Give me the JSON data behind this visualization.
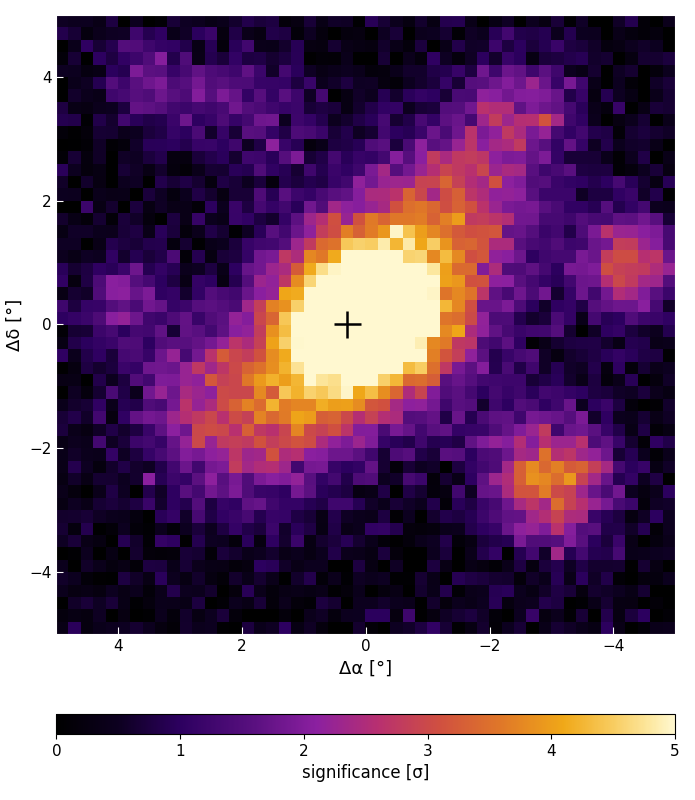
{
  "title": "",
  "xlabel": "Δα [°]",
  "ylabel": "Δδ [°]",
  "colorbar_label": "significance [σ]",
  "vmin": 0,
  "vmax": 5,
  "background_color": "#000000",
  "figsize": [
    6.95,
    8.0
  ],
  "dpi": 100,
  "xticks": [
    4,
    2,
    0,
    -2,
    -4
  ],
  "yticks": [
    -4,
    -2,
    0,
    2,
    4
  ],
  "cross_x": 0.3,
  "cross_y": 0.0,
  "cross_color": "black",
  "cross_lw": 1.8,
  "cross_arm": 0.22,
  "seed": 17
}
